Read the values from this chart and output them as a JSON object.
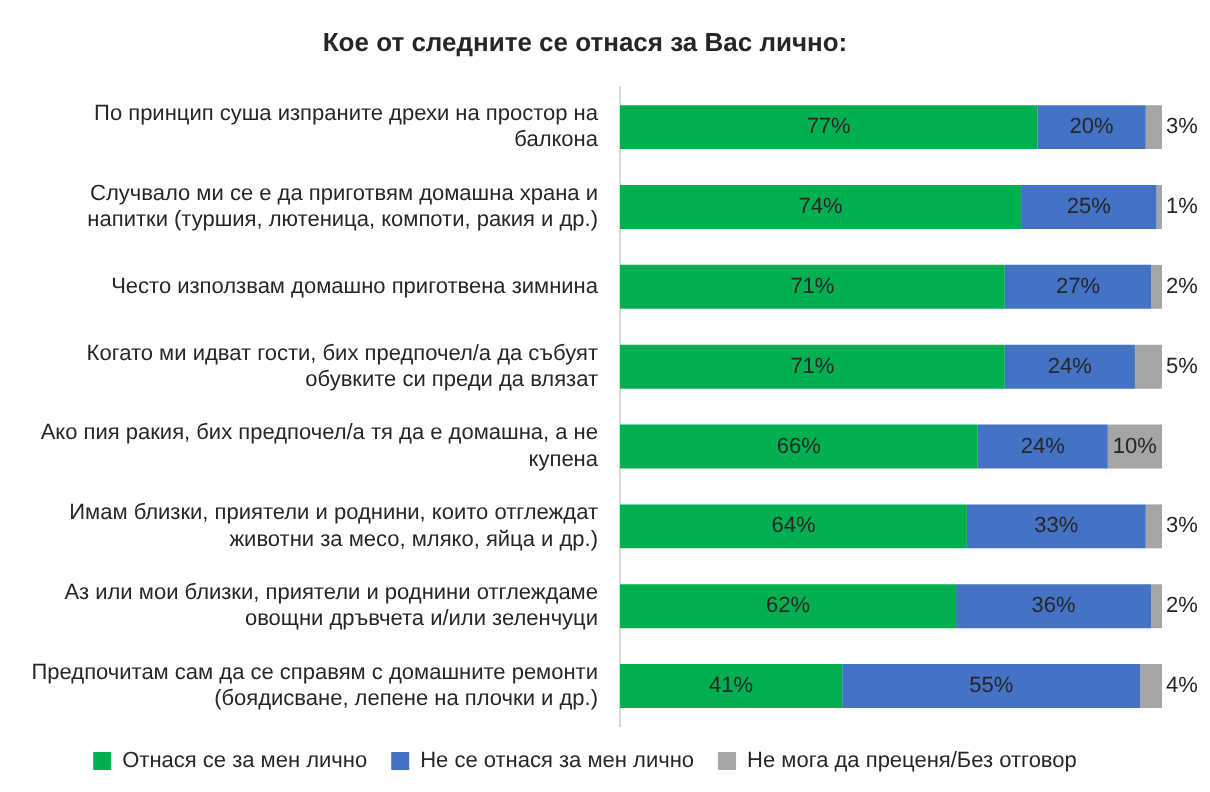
{
  "chart_data": {
    "type": "bar",
    "orientation": "horizontal",
    "stacked": true,
    "tick_labels": "y",
    "title": "Кое от следните се отнася за Вас лично:",
    "legend": "bottom",
    "grid": false,
    "categories": [
      "По принцип суша изпраните дрехи на простор на балкона",
      "Случвало ми се е да приготвям домашна храна и напитки (туршия, лютеница, компоти, ракия и др.)",
      "Често използвам домашно приготвена зимнина",
      "Когато ми идват гости, бих предпочел/а да събуят обувките си преди да влязат",
      "Ако пия ракия, бих предпочел/а тя да е домашна, а не купена",
      "Имам близки, приятели и роднини, които отглеждат животни за месо, мляко, яйца и др.)",
      "Аз или мои близки, приятели и роднини отглеждаме овощни дръвчета и/или зеленчуци",
      "Предпочитам сам да се справям с домашните ремонти (боядисване, лепене на плочки и др.)"
    ],
    "series": [
      {
        "name": "Отнася се за мен лично",
        "color": "#00b050",
        "values": [
          77,
          74,
          71,
          71,
          66,
          64,
          62,
          41
        ],
        "value_labels": [
          "77%",
          "74%",
          "71%",
          "71%",
          "66%",
          "64%",
          "62%",
          "41%"
        ]
      },
      {
        "name": "Не се отнася за мен лично",
        "color": "#4472c4",
        "values": [
          20,
          25,
          27,
          24,
          24,
          33,
          36,
          55
        ],
        "value_labels": [
          "20%",
          "25%",
          "27%",
          "24%",
          "24%",
          "33%",
          "36%",
          "55%"
        ]
      },
      {
        "name": "Не мога да преценя/Без отговор",
        "color": "#a5a5a5",
        "values": [
          3,
          1,
          2,
          5,
          10,
          3,
          2,
          4
        ],
        "value_labels": [
          "3%",
          "1%",
          "2%",
          "5%",
          "10%",
          "3%",
          "2%",
          "4%"
        ]
      }
    ]
  }
}
